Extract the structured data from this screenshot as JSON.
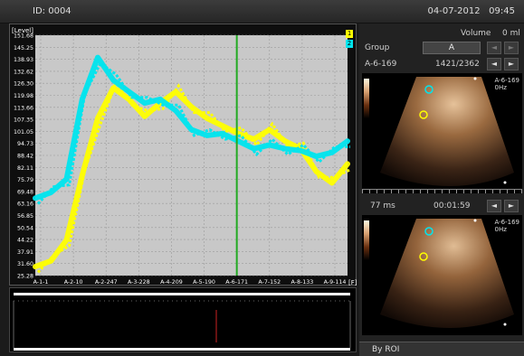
{
  "header": {
    "id_label": "ID:",
    "id_value": "0004",
    "date": "04-07-2012",
    "time": "09:45"
  },
  "chart": {
    "y_axis_title": "[Level]",
    "legend": [
      "1",
      "2"
    ],
    "legend_colors": [
      "#ffff00",
      "#00e5ee"
    ],
    "unit_marker": "[F]"
  },
  "chart_data": {
    "type": "line",
    "title": "",
    "xlabel": "",
    "ylabel": "[Level]",
    "ylim": [
      25.28,
      151.68
    ],
    "y_ticks": [
      "151.68",
      "145.25",
      "138.93",
      "132.62",
      "126.30",
      "119.98",
      "113.66",
      "107.35",
      "101.05",
      "94.73",
      "88.42",
      "82.11",
      "75.79",
      "69.48",
      "63.16",
      "56.85",
      "50.54",
      "44.22",
      "37.91",
      "31.60",
      "25.28"
    ],
    "x_tick_labels": [
      "A-1-1",
      "A-2-10",
      "A-2-247",
      "A-3-228",
      "A-4-209",
      "A-5-190",
      "A-6-171",
      "A-7-152",
      "A-8-133",
      "A-9-114"
    ],
    "marker_x_label": "A-6-171",
    "marker_color": "#22aa22",
    "x": [
      0,
      5,
      10,
      15,
      20,
      25,
      30,
      35,
      40,
      45,
      50,
      55,
      60,
      65,
      70,
      75,
      80,
      85,
      90,
      95,
      100
    ],
    "series": [
      {
        "name": "1",
        "color": "#ffff00",
        "values": [
          30,
          33,
          44,
          78,
          108,
          124,
          118,
          109,
          116,
          122,
          114,
          108,
          104,
          100,
          97,
          102,
          96,
          92,
          80,
          74,
          84
        ]
      },
      {
        "name": "2",
        "color": "#00e5ee",
        "values": [
          66,
          69,
          76,
          118,
          140,
          128,
          122,
          116,
          118,
          112,
          102,
          99,
          100,
          96,
          92,
          94,
          92,
          91,
          88,
          90,
          96
        ]
      }
    ]
  },
  "right_panel": {
    "volume_label": "Volume",
    "volume_value": "0 ml",
    "group_label": "Group",
    "group_value": "A",
    "frame_label": "A-6-169",
    "frame_counter": "1421/2362",
    "overlay_top": [
      "A-6-169",
      "0Hz"
    ],
    "time_ms": "77 ms",
    "time_clock": "00:01:59",
    "overlay_bottom": [
      "A-6-169",
      "0Hz"
    ],
    "mode_label": "By ROI"
  },
  "icons": {
    "prev": "◄",
    "next": "►"
  }
}
